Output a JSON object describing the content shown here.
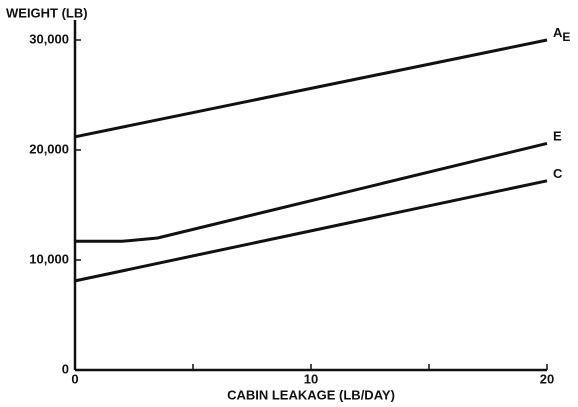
{
  "chart_data": {
    "type": "line",
    "y_axis_label": "WEIGHT (LB)",
    "x_axis_label": "CABIN LEAKAGE (LB/DAY)",
    "xlim": [
      0,
      20
    ],
    "xticks": [
      0,
      10,
      20
    ],
    "xminor_ticks": [
      5,
      15
    ],
    "ylim": [
      0,
      30000
    ],
    "yticks": [
      0,
      {
        "value": 10000,
        "label": "10,000"
      },
      {
        "value": 20000,
        "label": "20,000"
      },
      {
        "value": 30000,
        "label": "30,000"
      }
    ],
    "series": [
      {
        "name": "A",
        "name_subscript": "E",
        "color": "#111111",
        "x": [
          0,
          20
        ],
        "values": [
          21200,
          30000
        ]
      },
      {
        "name": "E",
        "color": "#111111",
        "x": [
          0,
          2,
          3.5,
          20
        ],
        "values": [
          11700,
          11700,
          12000,
          20600
        ]
      },
      {
        "name": "C",
        "color": "#111111",
        "x": [
          0,
          20
        ],
        "values": [
          8100,
          17200
        ]
      }
    ]
  }
}
